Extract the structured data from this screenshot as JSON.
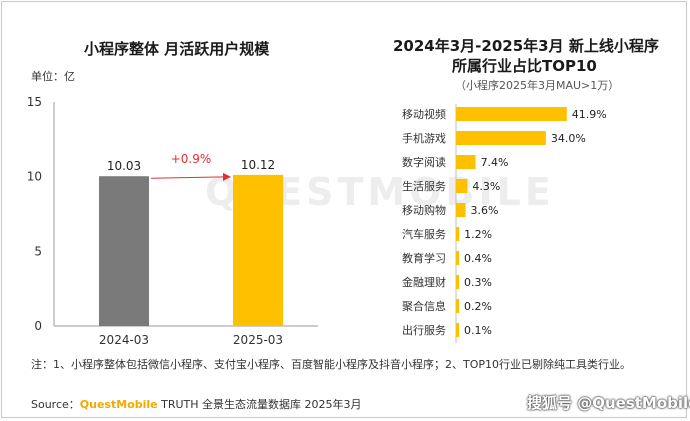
{
  "left_chart": {
    "title": "小程序整体 月活跃用户规模",
    "unit_label": "单位：亿"
  },
  "right_chart": {
    "title_line1": "2024年3月-2025年3月 新上线小程序",
    "title_line2": "所属行业占比TOP10",
    "subtitle": "（小程序2025年3月MAU>1万）"
  },
  "note": "注：1、小程序整体包括微信小程序、支付宝小程序、百度智能小程序及抖音小程序；2、TOP10行业已剔除纯工具类行业。",
  "source": {
    "prefix": "Source：",
    "brand": "QuestMobile",
    "rest": " TRUTH 全景生态流量数据库 2025年3月"
  },
  "watermark": "搜狐号 @QuestMobile",
  "background_logo": "QUESTMOBILE",
  "colors": {
    "bar_2024": "#7a7a7a",
    "bar_2025": "#ffc000",
    "growth_arrow": "#e03030",
    "hbar": "#ffc000"
  },
  "chart_data": [
    {
      "type": "bar",
      "title": "小程序整体 月活跃用户规模",
      "ylabel": "单位：亿",
      "categories": [
        "2024-03",
        "2025-03"
      ],
      "values": [
        10.03,
        10.12
      ],
      "value_labels": [
        "10.03",
        "10.12"
      ],
      "ylim": [
        0,
        15
      ],
      "yticks": [
        0,
        5,
        10,
        15
      ],
      "annotation": "+0.9%",
      "grid": false
    },
    {
      "type": "bar",
      "orientation": "horizontal",
      "title": "2024年3月-2025年3月 新上线小程序所属行业占比TOP10",
      "subtitle": "（小程序2025年3月MAU>1万）",
      "categories": [
        "移动视频",
        "手机游戏",
        "数字阅读",
        "生活服务",
        "移动购物",
        "汽车服务",
        "教育学习",
        "金融理财",
        "聚合信息",
        "出行服务"
      ],
      "values": [
        41.9,
        34.0,
        7.4,
        4.3,
        3.6,
        1.2,
        0.4,
        0.3,
        0.2,
        0.1
      ],
      "value_labels": [
        "41.9%",
        "34.0%",
        "7.4%",
        "4.3%",
        "3.6%",
        "1.2%",
        "0.4%",
        "0.3%",
        "0.2%",
        "0.1%"
      ],
      "xlim": [
        0,
        45
      ],
      "grid": false
    }
  ]
}
